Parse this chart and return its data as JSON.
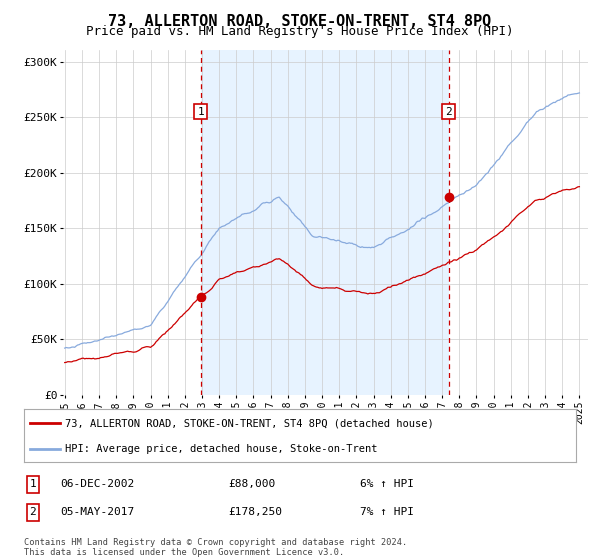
{
  "title": "73, ALLERTON ROAD, STOKE-ON-TRENT, ST4 8PQ",
  "subtitle": "Price paid vs. HM Land Registry's House Price Index (HPI)",
  "yticks_labels": [
    "£0",
    "£50K",
    "£100K",
    "£150K",
    "£200K",
    "£250K",
    "£300K"
  ],
  "yticks_values": [
    0,
    50000,
    100000,
    150000,
    200000,
    250000,
    300000
  ],
  "ylim": [
    0,
    310000
  ],
  "xlim_start": 1994.9,
  "xlim_end": 2025.5,
  "sale1_date": 2002.92,
  "sale1_price": 88000,
  "sale1_label": "1",
  "sale2_date": 2017.37,
  "sale2_price": 178250,
  "sale2_label": "2",
  "line_color_red": "#cc0000",
  "line_color_blue": "#88aadd",
  "fill_color": "#ddeeff",
  "vline_color": "#cc0000",
  "grid_color": "#cccccc",
  "background_color": "#ffffff",
  "legend_line1": "73, ALLERTON ROAD, STOKE-ON-TRENT, ST4 8PQ (detached house)",
  "legend_line2": "HPI: Average price, detached house, Stoke-on-Trent",
  "table_row1": [
    "1",
    "06-DEC-2002",
    "£88,000",
    "6% ↑ HPI"
  ],
  "table_row2": [
    "2",
    "05-MAY-2017",
    "£178,250",
    "7% ↑ HPI"
  ],
  "footer": "Contains HM Land Registry data © Crown copyright and database right 2024.\nThis data is licensed under the Open Government Licence v3.0.",
  "title_fontsize": 11,
  "subtitle_fontsize": 9
}
